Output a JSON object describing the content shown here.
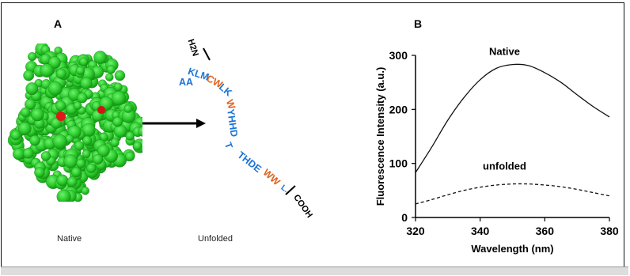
{
  "panel_a": {
    "label": "A",
    "native_caption": "Native",
    "unfolded_caption": "Unfolded",
    "n_terminus": "H2N",
    "c_terminus": "COOH",
    "seq_aa": "AA",
    "seq_1": "KLM",
    "seq_2": "CW",
    "seq_3": "LK",
    "seq_4": "W",
    "seq_5": "YHHD",
    "seq_6": "T",
    "seq_7": "THDE",
    "seq_8": "WW",
    "seq_9": "L..",
    "colors": {
      "protein": "#2fd12f",
      "trp": "#e01818",
      "sequence": "#1d74d6",
      "tryptophan_letter": "#e0631f"
    }
  },
  "panel_b": {
    "label": "B"
  },
  "chart_data": {
    "type": "line",
    "title": "",
    "xlabel": "Wavelength (nm)",
    "ylabel": "Fluorescence Intensity (a.u.)",
    "xlim": [
      320,
      380
    ],
    "ylim": [
      0,
      300
    ],
    "xticks": [
      320,
      340,
      360,
      380
    ],
    "yticks": [
      0,
      100,
      200,
      300
    ],
    "grid": false,
    "series": [
      {
        "name": "Native",
        "style": "solid",
        "x": [
          320,
          325,
          330,
          335,
          340,
          345,
          350,
          355,
          360,
          365,
          370,
          375,
          380
        ],
        "y": [
          83,
          130,
          180,
          222,
          255,
          276,
          283,
          281,
          268,
          250,
          227,
          205,
          186
        ]
      },
      {
        "name": "unfolded",
        "style": "dashed",
        "x": [
          320,
          325,
          330,
          335,
          340,
          345,
          350,
          355,
          360,
          365,
          370,
          375,
          380
        ],
        "y": [
          25,
          33,
          42,
          50,
          56,
          60,
          62,
          62,
          60,
          57,
          52,
          46,
          40
        ]
      }
    ]
  }
}
